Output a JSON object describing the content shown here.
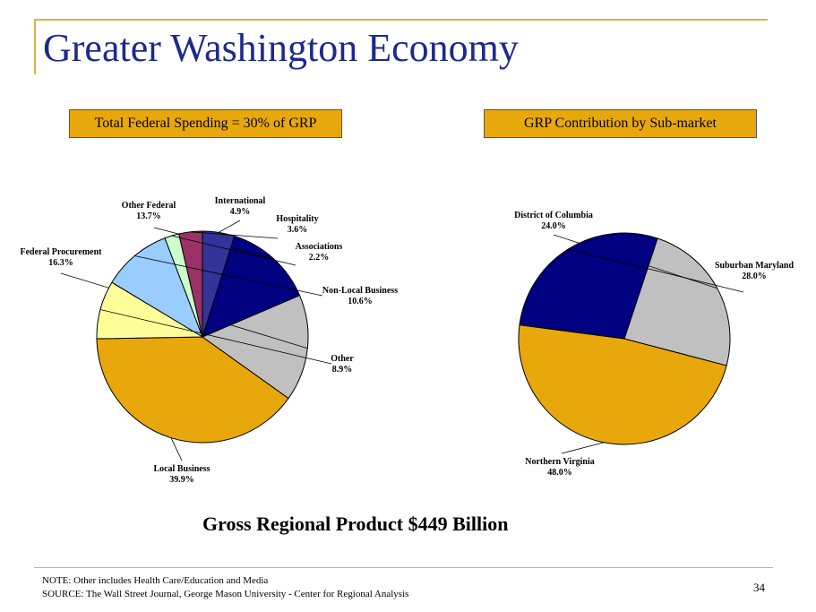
{
  "title": "Greater Washington Economy",
  "left_box": "Total Federal Spending = 30% of GRP",
  "right_box": "GRP Contribution by Sub-market",
  "headline": "Gross Regional Product   $449 Billion",
  "note": "NOTE:   Other includes Health Care/Education and Media",
  "source": "SOURCE:   The Wall Street Journal, George Mason University - Center for Regional Analysis",
  "page_number": "34",
  "chart_data": [
    {
      "type": "pie",
      "slices": [
        {
          "label": "Local Business",
          "value": 39.9,
          "value_label": "39.9%",
          "color": "#e8a80c"
        },
        {
          "label": "Federal Procurement",
          "value": 16.3,
          "value_label": "16.3%",
          "color": "#c0c0c0"
        },
        {
          "label": "Other Federal",
          "value": 13.7,
          "value_label": "13.7%",
          "color": "#000080"
        },
        {
          "label": "International",
          "value": 4.9,
          "value_label": "4.9%",
          "color": "#333399"
        },
        {
          "label": "Hospitality",
          "value": 3.6,
          "value_label": "3.6%",
          "color": "#993366"
        },
        {
          "label": "Associations",
          "value": 2.2,
          "value_label": "2.2%",
          "color": "#ccffcc"
        },
        {
          "label": "Non-Local Business",
          "value": 10.6,
          "value_label": "10.6%",
          "color": "#99ccff"
        },
        {
          "label": "Other",
          "value": 8.9,
          "value_label": "8.9%",
          "color": "#ffff99"
        }
      ]
    },
    {
      "type": "pie",
      "slices": [
        {
          "label": "Northern Virginia",
          "value": 48.0,
          "value_label": "48.0%",
          "color": "#e8a80c"
        },
        {
          "label": "District of Columbia",
          "value": 24.0,
          "value_label": "24.0%",
          "color": "#c0c0c0"
        },
        {
          "label": "Suburban Maryland",
          "value": 28.0,
          "value_label": "28.0%",
          "color": "#000080"
        }
      ]
    }
  ]
}
